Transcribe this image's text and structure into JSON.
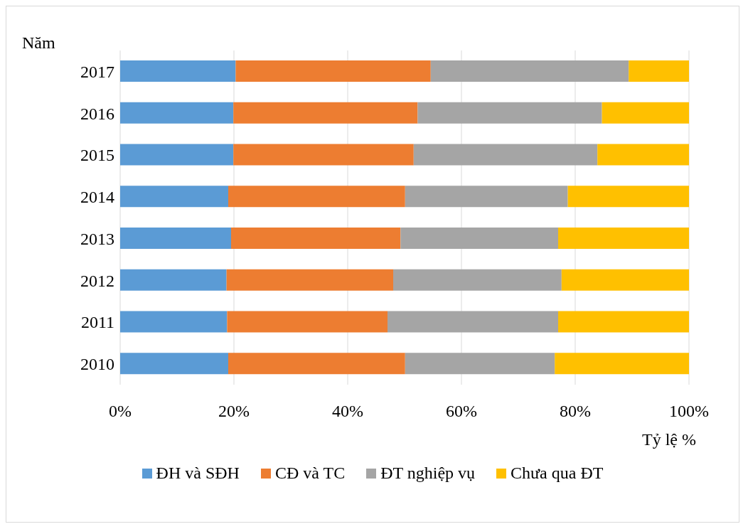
{
  "chart_data": {
    "type": "bar",
    "orientation": "horizontal",
    "stacked": true,
    "ylabel": "Năm",
    "xlabel": "Tỷ lệ %",
    "categories": [
      "2017",
      "2016",
      "2015",
      "2014",
      "2013",
      "2012",
      "2011",
      "2010"
    ],
    "series": [
      {
        "name": "ĐH và SĐH",
        "color": "#5b9bd5",
        "values": [
          20.3,
          19.9,
          19.9,
          19.0,
          19.5,
          18.7,
          18.8,
          19.0
        ]
      },
      {
        "name": "CĐ và TC",
        "color": "#ed7d31",
        "values": [
          34.3,
          32.4,
          31.7,
          31.1,
          29.8,
          29.3,
          28.2,
          31.1
        ]
      },
      {
        "name": "ĐT nghiệp vụ",
        "color": "#a5a5a5",
        "values": [
          34.8,
          32.4,
          32.3,
          28.6,
          27.7,
          29.6,
          30.0,
          26.3
        ]
      },
      {
        "name": "Chưa qua ĐT",
        "color": "#ffc000",
        "values": [
          10.6,
          15.3,
          16.1,
          21.3,
          23.0,
          22.4,
          23.0,
          23.6
        ]
      }
    ],
    "xlim": [
      0,
      100
    ],
    "xticks": [
      {
        "value": 0,
        "label": "0%"
      },
      {
        "value": 20,
        "label": "20%"
      },
      {
        "value": 40,
        "label": "40%"
      },
      {
        "value": 60,
        "label": "60%"
      },
      {
        "value": 80,
        "label": "80%"
      },
      {
        "value": 100,
        "label": "100%"
      }
    ],
    "grid": "x",
    "legend": "bottom"
  }
}
